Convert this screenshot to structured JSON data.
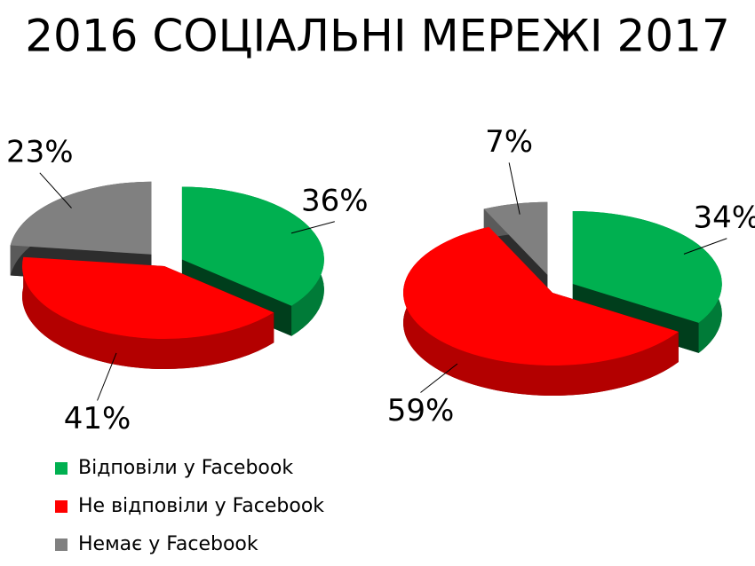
{
  "title": "2016 СОЦІАЛЬНІ МЕРЕЖІ  2017",
  "chart_data": [
    {
      "type": "pie",
      "categories": [
        "Відповіли у Facebook",
        "Не відповіли у Facebook",
        "Немає у Facebook"
      ],
      "values": [
        36,
        41,
        23
      ],
      "value_labels": [
        "36%",
        "41%",
        "23%"
      ],
      "colors": [
        "#00b050",
        "#ff0000",
        "#808080"
      ],
      "legend": "bottom-left"
    },
    {
      "type": "pie",
      "categories": [
        "Відповіли у Facebook",
        "Не відповіли у Facebook",
        "Немає у Facebook"
      ],
      "values": [
        34,
        59,
        7
      ],
      "value_labels": [
        "34%",
        "59%",
        "7%"
      ],
      "colors": [
        "#00b050",
        "#ff0000",
        "#808080"
      ]
    }
  ]
}
